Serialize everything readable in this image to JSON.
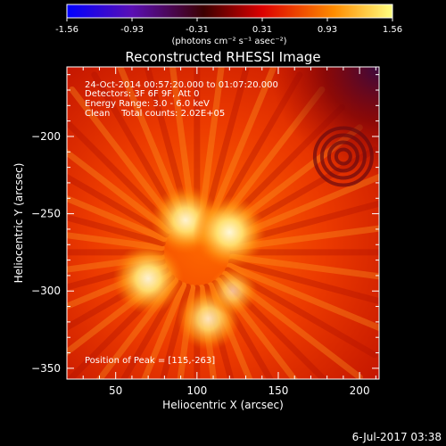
{
  "colorbar": {
    "ticks": [
      "-1.56",
      "-0.93",
      "-0.31",
      "0.31",
      "0.93",
      "1.56"
    ],
    "unit_label": "(photons cm⁻² s⁻¹ asec⁻²)",
    "colors": [
      "#0000ff",
      "#5a0fb4",
      "#3c0000",
      "#dc0000",
      "#ff8c00",
      "#ffff80"
    ]
  },
  "chart_data": {
    "type": "heatmap",
    "title": "Reconstructed RHESSI Image",
    "xlabel": "Heliocentric X (arcsec)",
    "ylabel": "Heliocentric Y (arcsec)",
    "xlim": [
      20,
      212
    ],
    "ylim": [
      -357,
      -155
    ],
    "xticks": [
      50,
      100,
      150,
      200
    ],
    "yticks": [
      -200,
      -250,
      -300,
      -350
    ],
    "info_lines": [
      "24-Oct-2014 00:57:20.000 to 01:07:20.000",
      "Detectors: 3F 6F 9F, Att 0",
      "Energy Range: 3.0 - 6.0 keV",
      "Clean    Total counts: 2.02E+05"
    ],
    "peak_label": "Position of Peak = [115,-263]",
    "peak_position": [
      115,
      -263
    ],
    "sources": [
      {
        "x": 93,
        "y": -254,
        "intensity": 0.85
      },
      {
        "x": 120,
        "y": -262,
        "intensity": 0.95
      },
      {
        "x": 70,
        "y": -292,
        "intensity": 0.9
      },
      {
        "x": 107,
        "y": -318,
        "intensity": 0.7
      },
      {
        "x": 122,
        "y": -300,
        "intensity": 0.35
      }
    ]
  },
  "footer_date": "6-Jul-2017 03:38"
}
